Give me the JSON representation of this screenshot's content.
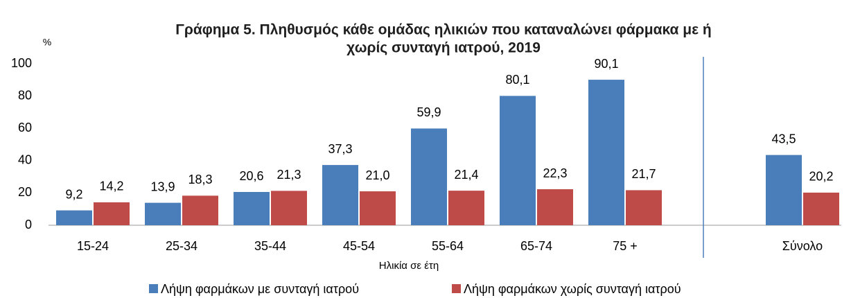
{
  "chart_data": {
    "type": "bar",
    "title": [
      "Γράφημα 5. Πληθυσμός κάθε ομάδας ηλικιών που καταναλώνει φάρμακα με ή",
      "χωρίς συνταγή ιατρού, 2019"
    ],
    "y_unit": "%",
    "x_label": "Ηλικία σε έτη",
    "categories": [
      "15-24",
      "25-34",
      "35-44",
      "45-54",
      "55-64",
      "65-74",
      "75 +",
      null,
      "Σύνολο"
    ],
    "series": [
      {
        "name": "Λήψη φαρμάκων με συνταγή ιατρού",
        "color": "#4a7ebb",
        "values": [
          9.2,
          13.9,
          20.6,
          37.3,
          59.9,
          80.1,
          90.1,
          null,
          43.5
        ],
        "value_labels": [
          "9,2",
          "13,9",
          "20,6",
          "37,3",
          "59,9",
          "80,1",
          "90,1",
          null,
          "43,5"
        ]
      },
      {
        "name": "Λήψη φαρμάκων χωρίς συνταγή ιατρού",
        "color": "#be4b48",
        "values": [
          14.2,
          18.3,
          21.3,
          21.0,
          21.4,
          22.3,
          21.7,
          null,
          20.2
        ],
        "value_labels": [
          "14,2",
          "18,3",
          "21,3",
          "21,0",
          "21,4",
          "22,3",
          "21,7",
          null,
          "20,2"
        ]
      }
    ],
    "ylim": [
      0,
      100
    ],
    "yticks": [
      0,
      20,
      40,
      60,
      80,
      100
    ],
    "grid": false,
    "legend": "bottom"
  }
}
